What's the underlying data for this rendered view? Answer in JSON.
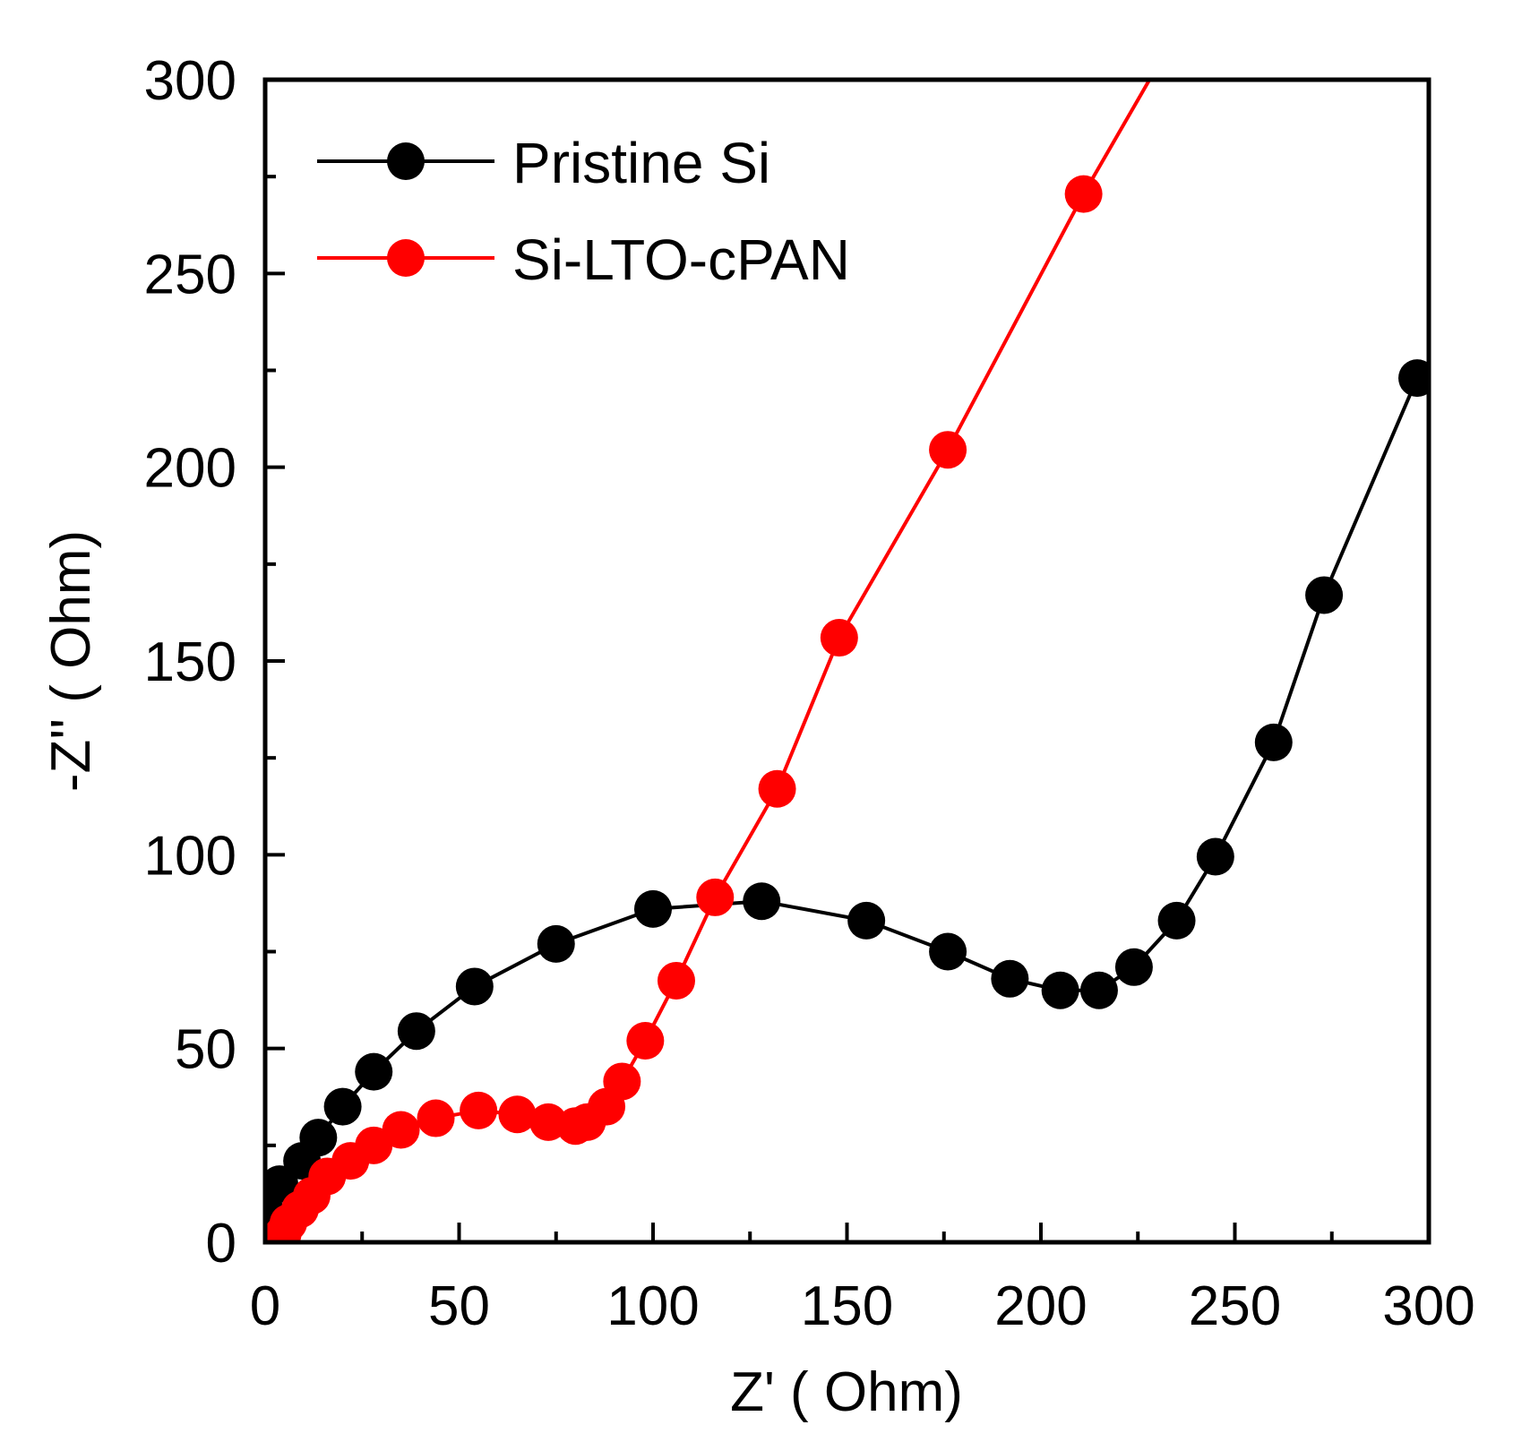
{
  "chart_data": {
    "type": "scatter",
    "title": "",
    "xlabel": "Z'  ( Ohm)",
    "ylabel": "-Z''  ( Ohm)",
    "xlim": [
      0,
      300
    ],
    "ylim": [
      0,
      300
    ],
    "xticks": [
      "0",
      "50",
      "100",
      "150",
      "200",
      "250",
      "300"
    ],
    "yticks": [
      "0",
      "50",
      "100",
      "150",
      "200",
      "250",
      "300"
    ],
    "grid": false,
    "legend_position": "top-left",
    "series": [
      {
        "name": "Pristine Si",
        "color": "#000000",
        "x": [
          0.7,
          3.7,
          9.5,
          13.7,
          20,
          28,
          39,
          54,
          75,
          100,
          128,
          155,
          176,
          192,
          205,
          215,
          224,
          235,
          245,
          260,
          273,
          297
        ],
        "y": [
          7,
          15,
          21,
          27,
          35,
          44,
          54.5,
          66,
          77,
          86,
          88,
          83,
          75,
          68,
          65,
          65,
          71,
          83,
          99.5,
          129,
          167,
          223
        ]
      },
      {
        "name": "Si-LTO-cPAN",
        "color": "#ff0000",
        "x": [
          4.5,
          6,
          9,
          12,
          16,
          22,
          28,
          35,
          44,
          55,
          65,
          73,
          80,
          83,
          88,
          92,
          98,
          106,
          116,
          132,
          148,
          176,
          211
        ],
        "y": [
          2,
          5,
          8.5,
          12,
          17,
          21,
          25,
          29,
          32,
          34,
          33,
          31,
          30,
          31,
          35,
          41.5,
          52,
          67.5,
          89,
          117,
          156,
          204.5,
          270.5
        ],
        "line_extends_to": [
          228,
          300
        ]
      }
    ]
  }
}
